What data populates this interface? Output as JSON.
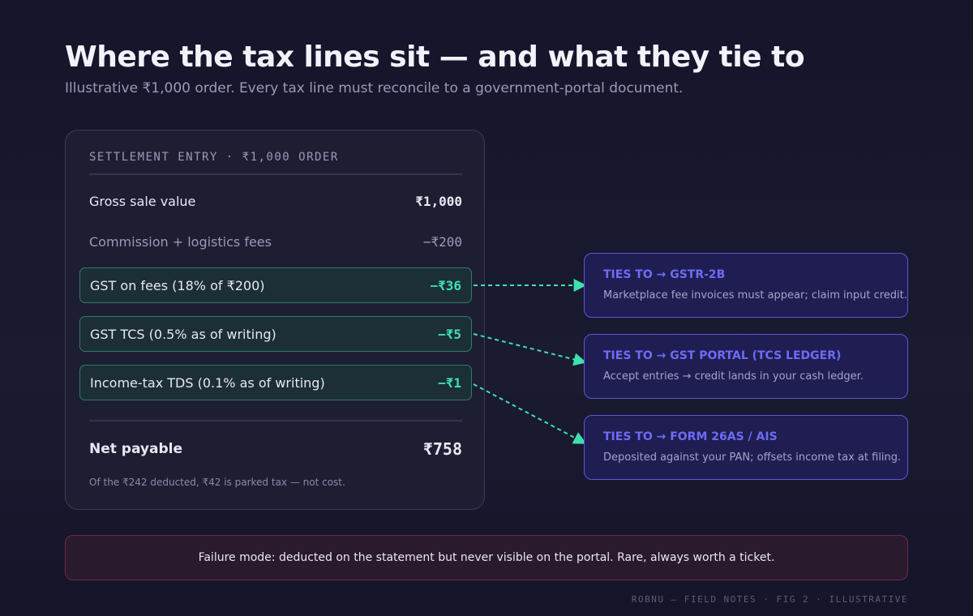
{
  "header": {
    "title": "Where the tax lines sit — and what they tie to",
    "subtitle": "Illustrative ₹1,000 order. Every tax line must reconcile to a government-portal document."
  },
  "settlement": {
    "heading": "SETTLEMENT ENTRY · ₹1,000 ORDER",
    "rows": [
      {
        "label": "Gross sale value",
        "amount": "₹1,000"
      },
      {
        "label": "Commission + logistics fees",
        "amount": "−₹200"
      },
      {
        "label": "GST on fees (18% of ₹200)",
        "amount": "−₹36"
      },
      {
        "label": "GST TCS (0.5% as of writing)",
        "amount": "−₹5"
      },
      {
        "label": "Income-tax TDS (0.1% as of writing)",
        "amount": "−₹1"
      }
    ],
    "net_label": "Net payable",
    "net_amount": "₹758",
    "note": "Of the ₹242 deducted, ₹42 is parked tax — not cost."
  },
  "ties": [
    {
      "title": "TIES TO → GSTR-2B",
      "text": "Marketplace fee invoices must appear; claim input credit."
    },
    {
      "title": "TIES TO → GST PORTAL (TCS LEDGER)",
      "text": "Accept entries → credit lands in your cash ledger."
    },
    {
      "title": "TIES TO → FORM 26AS / AIS",
      "text": "Deposited against your PAN; offsets income tax at filing."
    }
  ],
  "failure": "Failure mode: deducted on the statement but never visible on the portal. Rare, always worth a ticket.",
  "footer": "ROBNU — FIELD NOTES · FIG 2 · ILLUSTRATIVE"
}
